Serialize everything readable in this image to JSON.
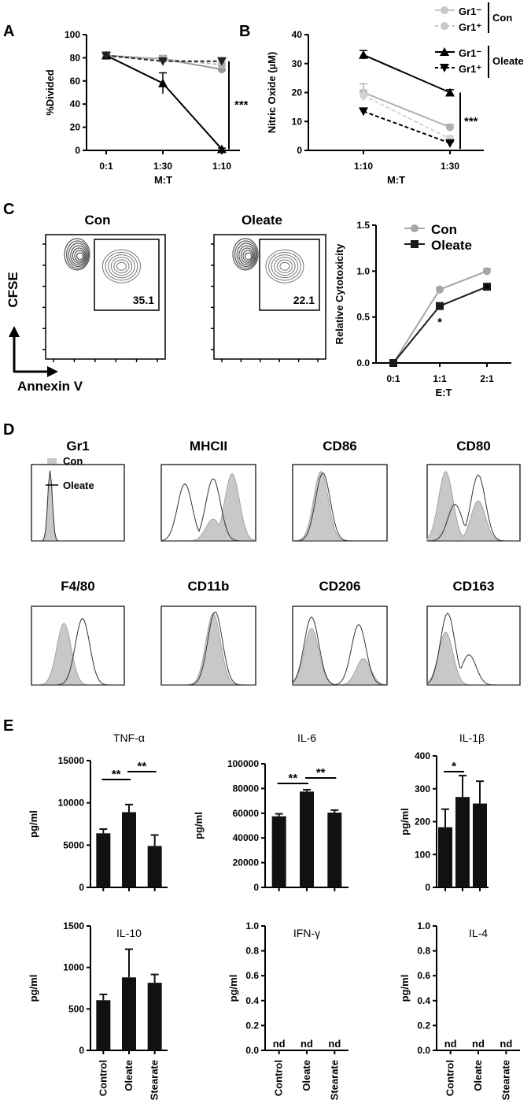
{
  "panels": {
    "A": "A",
    "B": "B",
    "C": "C",
    "D": "D",
    "E": "E"
  },
  "chart_data": [
    {
      "id": "A",
      "type": "line",
      "categories": [
        "0:1",
        "1:30",
        "1:10"
      ],
      "xlabel": "M:T",
      "ylabel": "%Divided",
      "ylim": [
        0,
        100
      ],
      "yticks": [
        0,
        20,
        40,
        60,
        80,
        100
      ],
      "series": [
        {
          "name": "Gr1- Con",
          "values": [
            82,
            79,
            70
          ],
          "errors": [
            2,
            3,
            3
          ],
          "color": "#999999",
          "marker": "circle",
          "dash": false
        },
        {
          "name": "Gr1+ Con",
          "values": [
            82,
            79,
            74
          ],
          "errors": [
            2,
            2,
            2
          ],
          "color": "#b5b5b5",
          "marker": "circle",
          "dash": true
        },
        {
          "name": "Gr1- Oleate",
          "values": [
            82,
            58,
            1
          ],
          "errors": [
            2,
            9,
            1
          ],
          "color": "#000000",
          "marker": "triangle",
          "dash": false
        },
        {
          "name": "Gr1+ Oleate",
          "values": [
            82,
            77,
            77
          ],
          "errors": [
            2,
            2,
            3
          ],
          "color": "#222222",
          "marker": "triangle-down",
          "dash": true
        }
      ],
      "annotation": "***"
    },
    {
      "id": "B",
      "type": "line",
      "categories": [
        "1:10",
        "1:30"
      ],
      "xlabel": "M:T",
      "ylabel": "Nitric Oxide (µM)",
      "ylim": [
        0,
        40
      ],
      "yticks": [
        0,
        10,
        20,
        30,
        40
      ],
      "series": [
        {
          "name": "Gr1- Con",
          "values": [
            20,
            8
          ],
          "errors": [
            3,
            1
          ],
          "color": "#b0b0b0",
          "marker": "circle",
          "dash": false
        },
        {
          "name": "Gr1+ Con",
          "values": [
            19,
            4
          ],
          "errors": [
            2,
            1
          ],
          "color": "#d3d3d3",
          "marker": "circle",
          "dash": true
        },
        {
          "name": "Gr1- Oleate",
          "values": [
            33,
            20
          ],
          "errors": [
            1.5,
            1
          ],
          "color": "#000000",
          "marker": "triangle",
          "dash": false
        },
        {
          "name": "Gr1+ Oleate",
          "values": [
            13.5,
            2.5
          ],
          "errors": [
            1,
            0.5
          ],
          "color": "#000000",
          "marker": "triangle-down",
          "dash": true
        }
      ],
      "annotation": "***",
      "legend": {
        "con_items": [
          {
            "label": "Gr1⁻",
            "style": "solid"
          },
          {
            "label": "Gr1⁺",
            "style": "dash"
          }
        ],
        "oleate_items": [
          {
            "label": "Gr1⁻",
            "style": "solid"
          },
          {
            "label": "Gr1⁺",
            "style": "dash"
          }
        ],
        "con_group": "Con",
        "oleate_group": "Oleate"
      }
    },
    {
      "id": "C-flow",
      "type": "other",
      "plots": [
        {
          "title": "Con",
          "gate_value": "35.1"
        },
        {
          "title": "Oleate",
          "gate_value": "22.1"
        }
      ],
      "ylabel": "CFSE",
      "xlabel": "Annexin V"
    },
    {
      "id": "C-cyto",
      "type": "line",
      "categories": [
        "0:1",
        "1:1",
        "2:1"
      ],
      "xlabel": "E:T",
      "ylabel": "Relative Cytotoxicity",
      "ylim": [
        0,
        1.5
      ],
      "yticks": [
        "0.0",
        "0.5",
        "1.0",
        "1.5"
      ],
      "series": [
        {
          "name": "Con",
          "values": [
            0.0,
            0.8,
            1.0
          ],
          "errors": [
            0.01,
            0.02,
            0.03
          ],
          "color": "#a6a6a6",
          "marker": "circle"
        },
        {
          "name": "Oleate",
          "values": [
            0.0,
            0.62,
            0.83
          ],
          "errors": [
            0.01,
            0.02,
            0.02
          ],
          "color": "#1a1a1a",
          "marker": "square"
        }
      ],
      "annotations": [
        "*",
        "*"
      ]
    },
    {
      "id": "D",
      "type": "other",
      "histograms": [
        "Gr1",
        "MHCII",
        "CD86",
        "CD80",
        "F4/80",
        "CD11b",
        "CD206",
        "CD163"
      ],
      "legend": [
        "Con",
        "Oleate"
      ]
    },
    {
      "id": "E",
      "type": "bar",
      "categories": [
        "Control",
        "Oleate",
        "Stearate"
      ],
      "ylabel": "pg/ml",
      "plots": [
        {
          "title": "TNF-α",
          "values": [
            6400,
            8900,
            4900
          ],
          "errors": [
            500,
            900,
            1300
          ],
          "ylim": [
            0,
            15000
          ],
          "yticks": [
            "0",
            "5000",
            "10000",
            "15000"
          ],
          "sig": [
            {
              "from": 0,
              "to": 1,
              "label": "**"
            },
            {
              "from": 1,
              "to": 2,
              "label": "**"
            }
          ]
        },
        {
          "title": "IL-6",
          "values": [
            57500,
            77500,
            60500
          ],
          "errors": [
            2000,
            1500,
            2000
          ],
          "ylim": [
            0,
            100000
          ],
          "yticks": [
            "0",
            "20000",
            "40000",
            "60000",
            "80000",
            "100000"
          ],
          "sig": [
            {
              "from": 0,
              "to": 1,
              "label": "**"
            },
            {
              "from": 1,
              "to": 2,
              "label": "**"
            }
          ]
        },
        {
          "title": "IL-1β",
          "values": [
            183,
            275,
            255
          ],
          "errors": [
            55,
            65,
            68
          ],
          "ylim": [
            0,
            400
          ],
          "yticks": [
            "0",
            "100",
            "200",
            "300",
            "400"
          ],
          "sig": [
            {
              "from": 0,
              "to": 1,
              "label": "*"
            }
          ]
        },
        {
          "title": "IL-10",
          "values": [
            605,
            880,
            815
          ],
          "errors": [
            70,
            340,
            100
          ],
          "ylim": [
            0,
            1500
          ],
          "yticks": [
            "0",
            "500",
            "1000",
            "1500"
          ],
          "sig": []
        },
        {
          "title": "IFN-γ",
          "values": [],
          "nd": [
            "nd",
            "nd",
            "nd"
          ],
          "ylim": [
            0,
            1.0
          ],
          "yticks": [
            "0.0",
            "0.2",
            "0.4",
            "0.6",
            "0.8",
            "1.0"
          ],
          "sig": []
        },
        {
          "title": "IL-4",
          "values": [],
          "nd": [
            "nd",
            "nd",
            "nd"
          ],
          "ylim": [
            0,
            1.0
          ],
          "yticks": [
            "0.0",
            "0.2",
            "0.4",
            "0.6",
            "0.8",
            "1.0"
          ],
          "sig": []
        }
      ]
    }
  ]
}
